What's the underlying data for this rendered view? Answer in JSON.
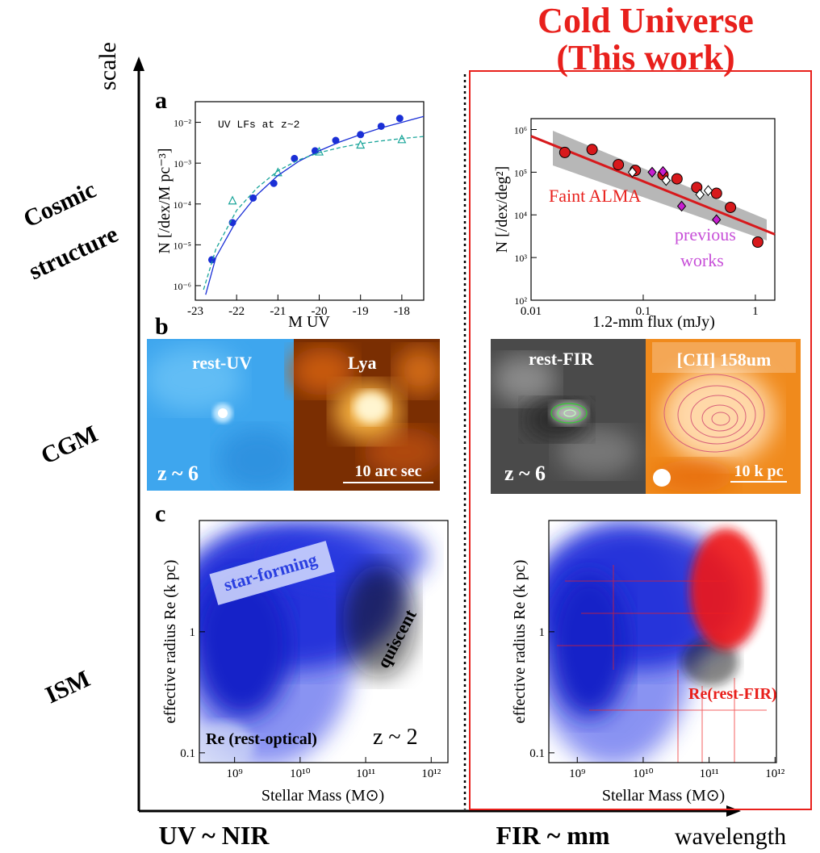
{
  "title": [
    "Cold Universe",
    "(This work)"
  ],
  "axes": {
    "vertical": "scale",
    "horizontal": "wavelength"
  },
  "row_labels": [
    "Cosmic",
    "structure",
    "CGM",
    "ISM"
  ],
  "column_labels": [
    "UV ~ NIR",
    "FIR ~ mm"
  ],
  "panel_labels": [
    "a",
    "b",
    "c"
  ],
  "images": [
    {
      "label": "rest-UV",
      "note": "z ~ 6"
    },
    {
      "label": "Lya",
      "note": "10 arc sec"
    },
    {
      "label": "rest-FIR",
      "note": "z ~ 6"
    },
    {
      "label": "[CII] 158um",
      "note": "10 k pc"
    }
  ],
  "chart_data": [
    {
      "type": "scatter",
      "title": "UV LFs at z~2",
      "xlabel": "M UV",
      "ylabel": "N [/dex/M pc⁻³]",
      "xscale": "linear",
      "yscale": "log",
      "xlim": [
        -23,
        -17.47
      ],
      "ylim": [
        4.4e-07,
        0.032
      ],
      "xticks": [
        -23,
        -22,
        -21,
        -20,
        -19,
        -18
      ],
      "yticks": [
        {
          "value": 1e-06,
          "label": "10⁻⁶"
        },
        {
          "value": 1e-05,
          "label": "10⁻⁵"
        },
        {
          "value": 0.0001,
          "label": "10⁻⁴"
        },
        {
          "value": 0.001,
          "label": "10⁻³"
        },
        {
          "value": 0.01,
          "label": "10⁻²"
        }
      ],
      "series": [
        {
          "color": "#1a2fd6",
          "marker": "circle",
          "x": [
            -22.6,
            -22.1,
            -21.6,
            -21.1,
            -20.6,
            -20.1,
            -19.6,
            -19.0,
            -18.5,
            -18.05
          ],
          "values": [
            4.3e-06,
            3.5e-05,
            0.00014,
            0.00032,
            0.0013,
            0.002,
            0.0036,
            0.005,
            0.008,
            0.0125
          ]
        },
        {
          "color": "#1aa59a",
          "marker": "triangle",
          "x": [
            -22.1,
            -21.0,
            -20.0,
            -19.0,
            -18.0
          ],
          "values": [
            0.00012,
            0.00059,
            0.0019,
            0.0028,
            0.0038
          ]
        },
        {
          "color": "#1a2fd6",
          "marker": "line",
          "x": [
            -22.75,
            -22.5,
            -22,
            -21.5,
            -21,
            -20.5,
            -20,
            -19.5,
            -19,
            -18.5,
            -18,
            -17.47
          ],
          "values": [
            6e-07,
            5e-06,
            4e-05,
            0.00017,
            0.0005,
            0.0011,
            0.002,
            0.0033,
            0.005,
            0.0073,
            0.01,
            0.014
          ]
        },
        {
          "color": "#1aa59a",
          "marker": "dashed",
          "x": [
            -22.8,
            -22.5,
            -22,
            -21.5,
            -21,
            -20.5,
            -20,
            -19.5,
            -19,
            -18.5,
            -18,
            -17.47
          ],
          "values": [
            8e-07,
            8e-06,
            7e-05,
            0.00025,
            0.00065,
            0.0012,
            0.0018,
            0.0024,
            0.003,
            0.0035,
            0.004,
            0.0045
          ]
        }
      ],
      "annotations": []
    },
    {
      "type": "scatter",
      "xlabel": "1.2-mm flux (mJy)",
      "ylabel": "N [/dex/deg²]",
      "xscale": "log",
      "yscale": "log",
      "xlim": [
        0.01,
        1.49
      ],
      "ylim": [
        100,
        1800000
      ],
      "xticks": [
        0.01,
        0.1,
        1
      ],
      "yticks": [
        {
          "value": 100,
          "label": "10²"
        },
        {
          "value": 1000,
          "label": "10³"
        },
        {
          "value": 10000,
          "label": "10⁴"
        },
        {
          "value": 100000,
          "label": "10⁵"
        },
        {
          "value": 1000000,
          "label": "10⁶"
        }
      ],
      "series": [
        {
          "color": "#d7191c",
          "marker": "line",
          "x": [
            0.01,
            1.49
          ],
          "values": [
            700000,
            3500
          ]
        },
        {
          "color": "#d7191c",
          "marker": "circle",
          "x": [
            0.02,
            0.035,
            0.06,
            0.085,
            0.15,
            0.2,
            0.3,
            0.45,
            0.6,
            1.05
          ],
          "values": [
            290000,
            340000,
            150000,
            110000,
            87000,
            70000,
            44000,
            32000,
            15000,
            2300
          ]
        },
        {
          "color": "#c71fd0",
          "marker": "diamond",
          "x": [
            0.12,
            0.15,
            0.22,
            0.45
          ],
          "values": [
            100000,
            104000,
            16000,
            7700
          ]
        },
        {
          "color": "#ffffff",
          "marker": "diamond",
          "x": [
            0.08,
            0.16,
            0.32,
            0.38
          ],
          "values": [
            100000,
            64000,
            30000,
            37000
          ]
        }
      ],
      "annotations": [
        {
          "text": "Faint ALMA",
          "color": "#e8201c"
        },
        {
          "text": "previous",
          "color": "#c74fd8"
        },
        {
          "text": "works",
          "color": "#c74fd8"
        }
      ]
    },
    {
      "type": "scatter",
      "xlabel": "Stellar Mass (M⊙)",
      "ylabel": "effective radius Re (k pc)",
      "xscale": "log",
      "yscale": "log",
      "xlim": [
        290000000,
        1800000000000
      ],
      "ylim": [
        0.083,
        8.3
      ],
      "xticks": [
        {
          "value": 1000000000,
          "label": "10⁹"
        },
        {
          "value": 10000000000,
          "label": "10¹⁰"
        },
        {
          "value": 100000000000,
          "label": "10¹¹"
        },
        {
          "value": 1000000000000,
          "label": "10¹²"
        }
      ],
      "yticks": [
        0.1,
        1
      ],
      "series": [],
      "annotations": [
        {
          "text": "star-forming",
          "color": "#2a3fe0"
        },
        {
          "text": "quiscent",
          "color": "#000000"
        },
        {
          "text": "Re (rest-optical)",
          "color": "#000000"
        },
        {
          "text": "z ~ 2",
          "color": "#000000"
        }
      ]
    },
    {
      "type": "scatter",
      "xlabel": "Stellar Mass (M⊙)",
      "ylabel": "effective radius Re (k pc)",
      "xscale": "log",
      "yscale": "log",
      "xlim": [
        370000000,
        1050000000000
      ],
      "ylim": [
        0.083,
        8.3
      ],
      "xticks": [
        {
          "value": 1000000000,
          "label": "10⁹"
        },
        {
          "value": 10000000000,
          "label": "10¹⁰"
        },
        {
          "value": 100000000000,
          "label": "10¹¹"
        },
        {
          "value": 1000000000000,
          "label": "10¹²"
        }
      ],
      "yticks": [
        0.1,
        1
      ],
      "series": [],
      "annotations": [
        {
          "text": "Re(rest-FIR)",
          "color": "#e8201c"
        }
      ]
    }
  ]
}
